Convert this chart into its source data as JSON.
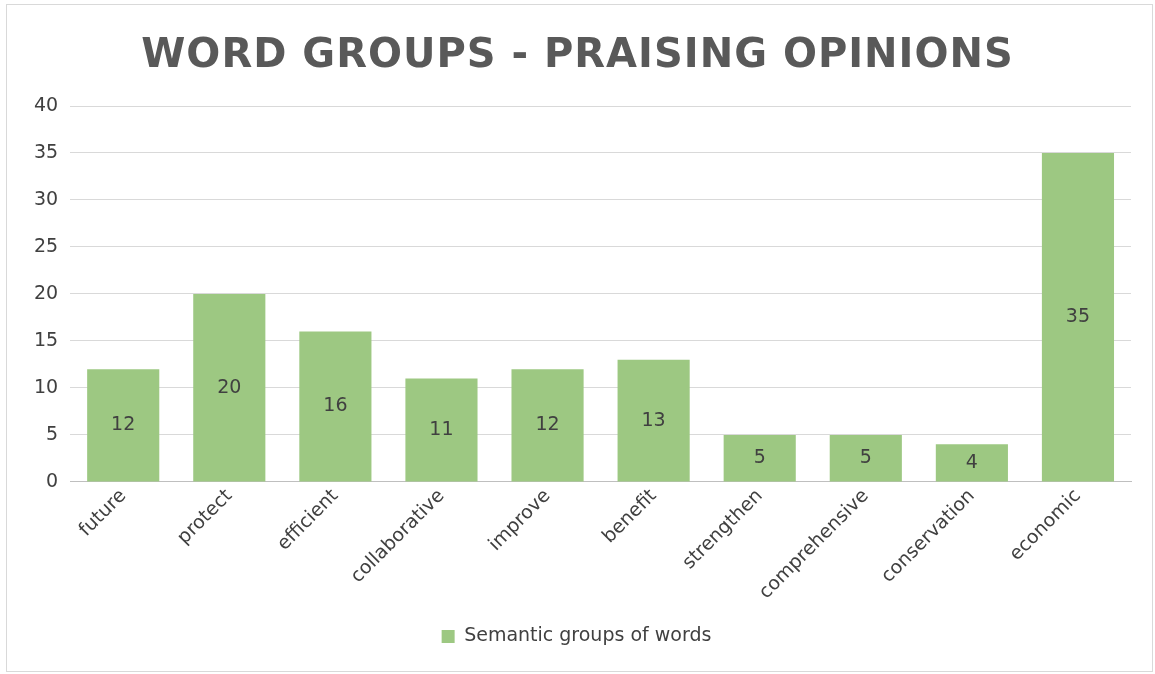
{
  "chart_data": {
    "type": "bar",
    "title": "WORD GROUPS - PRAISING OPINIONS",
    "categories": [
      "future",
      "protect",
      "efficient",
      "collaborative",
      "improve",
      "benefit",
      "strengthen",
      "comprehensive",
      "conservation",
      "economic"
    ],
    "series": [
      {
        "name": "Semantic groups of words",
        "color": "#9dc882",
        "values": [
          12,
          20,
          16,
          11,
          12,
          13,
          5,
          5,
          4,
          35
        ]
      }
    ],
    "ylim": [
      0,
      40
    ],
    "yticks": [
      0,
      5,
      10,
      15,
      20,
      25,
      30,
      35,
      40
    ],
    "grid": "y",
    "legend": "bottom",
    "data_labels": true
  }
}
